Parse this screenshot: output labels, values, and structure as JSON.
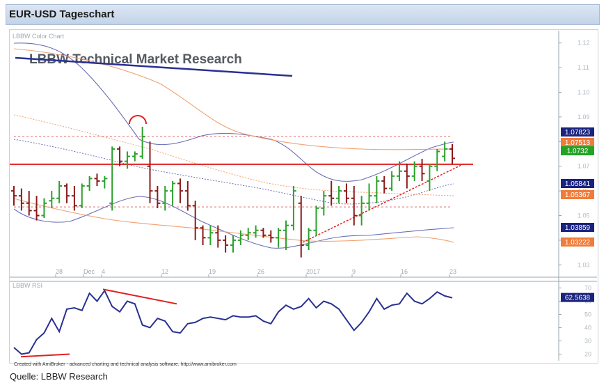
{
  "header": {
    "title": "EUR-USD Tageschart"
  },
  "source": "Quelle: LBBW Research",
  "chart_data": [
    {
      "type": "candlestick",
      "panel_label": "LBBW Color Chart",
      "watermark": "LBBW Technical Market Research",
      "y_ticks": [
        "1.12",
        "1.11",
        "1.10",
        "1.09",
        "1.08",
        "1.07",
        "1.06",
        "1.05",
        "1.04",
        "1.03"
      ],
      "ylim": [
        1.025,
        1.125
      ],
      "x_ticks": [
        "28",
        "Dec",
        "4",
        "12",
        "19",
        "26",
        "2017",
        "9",
        "16",
        "23"
      ],
      "price_labels": [
        {
          "text": "1.07823",
          "color": "#1a237e"
        },
        {
          "text": "1.07513",
          "color": "#f07c3a"
        },
        {
          "text": "1.0732",
          "color": "#23a326"
        },
        {
          "text": "1.05841",
          "color": "#1a237e"
        },
        {
          "text": "1.05367",
          "color": "#f07c3a"
        },
        {
          "text": "1.03859",
          "color": "#1a237e"
        },
        {
          "text": "1.03222",
          "color": "#f07c3a"
        }
      ],
      "horizontal_level": 1.0708,
      "dotted_levels": [
        1.0822,
        1.0535
      ],
      "ohlc": [
        [
          1.06,
          1.062,
          1.054,
          1.058
        ],
        [
          1.058,
          1.061,
          1.052,
          1.055
        ],
        [
          1.055,
          1.06,
          1.05,
          1.052
        ],
        [
          1.052,
          1.058,
          1.048,
          1.05
        ],
        [
          1.05,
          1.057,
          1.049,
          1.055
        ],
        [
          1.056,
          1.06,
          1.053,
          1.057
        ],
        [
          1.057,
          1.064,
          1.055,
          1.062
        ],
        [
          1.062,
          1.063,
          1.055,
          1.058
        ],
        [
          1.058,
          1.062,
          1.052,
          1.054
        ],
        [
          1.054,
          1.063,
          1.053,
          1.062
        ],
        [
          1.062,
          1.066,
          1.06,
          1.065
        ],
        [
          1.065,
          1.067,
          1.062,
          1.064
        ],
        [
          1.064,
          1.066,
          1.061,
          1.065
        ],
        [
          1.055,
          1.078,
          1.052,
          1.077
        ],
        [
          1.077,
          1.078,
          1.07,
          1.072
        ],
        [
          1.072,
          1.076,
          1.069,
          1.074
        ],
        [
          1.074,
          1.076,
          1.072,
          1.075
        ],
        [
          1.074,
          1.086,
          1.073,
          1.082
        ],
        [
          1.07,
          1.08,
          1.055,
          1.06
        ],
        [
          1.06,
          1.062,
          1.053,
          1.055
        ],
        [
          1.055,
          1.062,
          1.052,
          1.06
        ],
        [
          1.06,
          1.064,
          1.054,
          1.063
        ],
        [
          1.063,
          1.065,
          1.055,
          1.06
        ],
        [
          1.06,
          1.064,
          1.052,
          1.054
        ],
        [
          1.054,
          1.056,
          1.04,
          1.045
        ],
        [
          1.045,
          1.046,
          1.038,
          1.041
        ],
        [
          1.041,
          1.046,
          1.038,
          1.043
        ],
        [
          1.043,
          1.046,
          1.037,
          1.04
        ],
        [
          1.04,
          1.042,
          1.035,
          1.038
        ],
        [
          1.038,
          1.042,
          1.035,
          1.04
        ],
        [
          1.04,
          1.044,
          1.038,
          1.042
        ],
        [
          1.042,
          1.045,
          1.04,
          1.043
        ],
        [
          1.043,
          1.046,
          1.041,
          1.044
        ],
        [
          1.044,
          1.045,
          1.041,
          1.042
        ],
        [
          1.042,
          1.044,
          1.039,
          1.041
        ],
        [
          1.041,
          1.045,
          1.037,
          1.044
        ],
        [
          1.044,
          1.048,
          1.036,
          1.046
        ],
        [
          1.046,
          1.062,
          1.044,
          1.06
        ],
        [
          1.055,
          1.058,
          1.033,
          1.038
        ],
        [
          1.038,
          1.045,
          1.036,
          1.044
        ],
        [
          1.044,
          1.054,
          1.042,
          1.053
        ],
        [
          1.053,
          1.06,
          1.05,
          1.058
        ],
        [
          1.058,
          1.064,
          1.054,
          1.057
        ],
        [
          1.057,
          1.062,
          1.055,
          1.06
        ],
        [
          1.06,
          1.063,
          1.055,
          1.057
        ],
        [
          1.057,
          1.062,
          1.046,
          1.05
        ],
        [
          1.05,
          1.058,
          1.046,
          1.055
        ],
        [
          1.055,
          1.063,
          1.052,
          1.058
        ],
        [
          1.058,
          1.066,
          1.055,
          1.064
        ],
        [
          1.064,
          1.066,
          1.059,
          1.061
        ],
        [
          1.061,
          1.068,
          1.06,
          1.066
        ],
        [
          1.066,
          1.072,
          1.064,
          1.068
        ],
        [
          1.068,
          1.071,
          1.061,
          1.066
        ],
        [
          1.066,
          1.072,
          1.064,
          1.07
        ],
        [
          1.07,
          1.073,
          1.064,
          1.067
        ],
        [
          1.064,
          1.071,
          1.06,
          1.07
        ],
        [
          1.07,
          1.077,
          1.068,
          1.076
        ],
        [
          1.074,
          1.08,
          1.072,
          1.077
        ],
        [
          1.077,
          1.079,
          1.071,
          1.0732
        ]
      ],
      "annotations": {
        "downtrend_line": [
          [
            1.117,
            1.109
          ]
        ],
        "uptrend_line_to": 1.066
      }
    },
    {
      "type": "line",
      "panel_label": "LBBW RSI",
      "y_ticks": [
        "70",
        "60",
        "50",
        "40",
        "30",
        "20"
      ],
      "ylim": [
        15,
        75
      ],
      "value_label": "62.5638",
      "values": [
        25,
        20,
        21,
        31,
        36,
        47,
        37,
        54,
        55,
        53,
        66,
        60,
        68,
        56,
        52,
        60,
        58,
        42,
        40,
        47,
        45,
        37,
        36,
        43,
        44,
        47,
        48,
        47,
        46,
        49,
        48,
        48,
        49,
        45,
        43,
        52,
        57,
        54,
        56,
        62,
        55,
        60,
        58,
        54,
        46,
        38,
        44,
        52,
        62,
        54,
        57,
        58,
        66,
        60,
        58,
        62,
        67,
        64,
        62.5638
      ],
      "credit": "Created with AmiBroker - advanced charting and technical analysis software. http://www.amibroker.com"
    }
  ]
}
